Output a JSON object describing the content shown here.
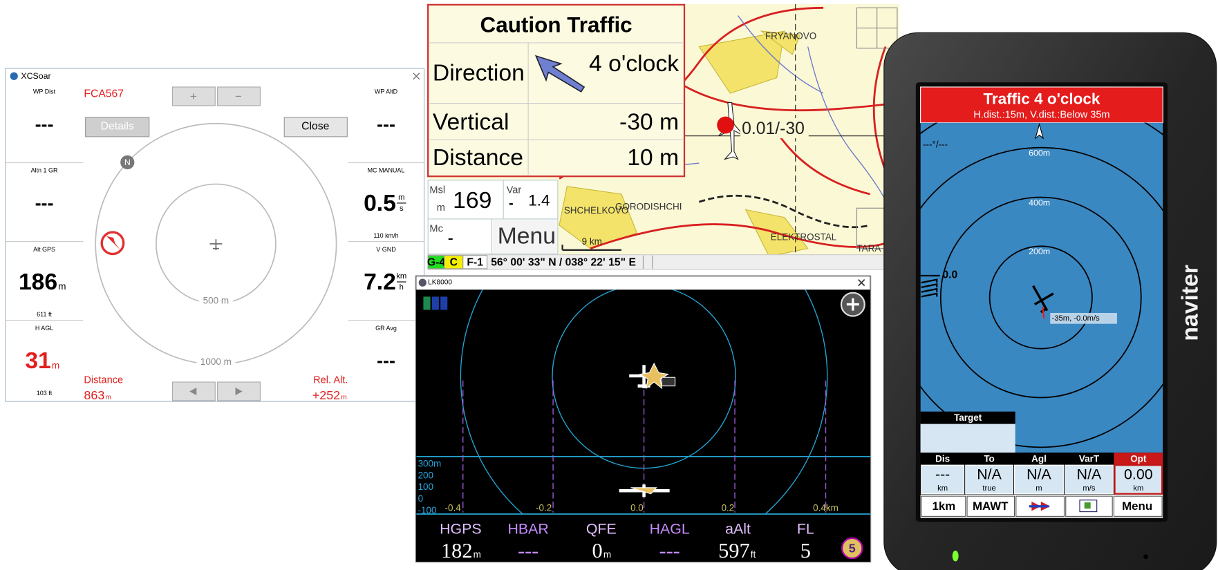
{
  "xcsoar": {
    "window_title": "XCSoar",
    "left_panels": [
      {
        "label": "WP Dist",
        "value": "---"
      },
      {
        "label": "Altn 1 GR",
        "value": "---"
      },
      {
        "label": "Alt GPS",
        "value": "186",
        "unit": "m",
        "note": "611 ft"
      },
      {
        "label": "H AGL",
        "value": "31",
        "unit": "m",
        "note": "103 ft"
      }
    ],
    "right_panels": [
      {
        "label": "WP AltD",
        "value": "---"
      },
      {
        "label": "MC MANUAL",
        "value": "0.5",
        "unit_top": "m",
        "unit_bottom": "s",
        "note": "110 km/h"
      },
      {
        "label": "V GND",
        "value": "7.2",
        "unit_top": "km",
        "unit_bottom": "h"
      },
      {
        "label": "GR Avg",
        "value": "---"
      }
    ],
    "callsign": "FCA567",
    "zoom_buttons": [
      "+",
      "−"
    ],
    "details_button": "Details",
    "close_button": "Close",
    "north": "N",
    "rings": [
      "500 m",
      "1000 m"
    ],
    "distance": {
      "label": "Distance",
      "value": "863",
      "unit": "m"
    },
    "rel_alt": {
      "label": "Rel. Alt.",
      "value": "+252",
      "unit": "m"
    }
  },
  "flarm_map": {
    "title": "Caution Traffic",
    "rows": [
      {
        "label": "Direction",
        "value": "4 o'clock"
      },
      {
        "label": "Vertical",
        "value": "-30 m"
      },
      {
        "label": "Distance",
        "value": "10 m"
      }
    ],
    "map_labels": [
      "FRYANOVO",
      "SHCHELKOVO",
      "GORODISHCHI",
      "ELEKTROSTAL",
      "TARA"
    ],
    "traffic_label": "0.01/-30",
    "scale": "9 km",
    "infoboxes": [
      {
        "label": "Msl",
        "unit": "m",
        "value": "169"
      },
      {
        "label": "Var",
        "unit": "-",
        "value": "1.4"
      },
      {
        "label": "Mc",
        "value": "-"
      }
    ],
    "menu": "Menu",
    "status": [
      "G-4",
      "C",
      "F-1"
    ],
    "position": "56° 00' 33\" N / 038° 22' 15\" E"
  },
  "lk8000": {
    "window_title": "LK8000",
    "altitude_ticks": [
      "300m",
      "200",
      "100",
      "0",
      "-100"
    ],
    "distance_ticks": [
      "-0.4",
      "-0.2",
      "0.0",
      "0.2",
      "0.4km"
    ],
    "readouts": [
      {
        "label": "HGPS",
        "value": "182",
        "unit": "m"
      },
      {
        "label": "HBAR",
        "value": "---"
      },
      {
        "label": "QFE",
        "value": "0",
        "unit": "m"
      },
      {
        "label": "HAGL",
        "value": "---"
      },
      {
        "label": "aAlt",
        "value": "597",
        "unit": "ft"
      },
      {
        "label": "FL",
        "value": "5"
      }
    ],
    "page": "5"
  },
  "naviter": {
    "title": "Traffic 4 o'clock",
    "subtitle": "H.dist.:15m, V.dist.:Below 35m",
    "track": "---°/---",
    "rings": [
      "600m",
      "400m",
      "200m"
    ],
    "vario": "0.0",
    "target_label": "-35m, -0.0m/s",
    "target": "Target",
    "columns": [
      {
        "header": "Dis",
        "value": "---",
        "unit": "km"
      },
      {
        "header": "To",
        "value": "N/A",
        "unit": "true"
      },
      {
        "header": "Agl",
        "value": "N/A",
        "unit": "m"
      },
      {
        "header": "VarT",
        "value": "N/A",
        "unit": "m/s"
      },
      {
        "header": "Opt",
        "value": "0.00",
        "unit": "km"
      }
    ],
    "buttons": [
      "1km",
      "MAWT",
      "Menu"
    ],
    "brand": "naviter"
  }
}
